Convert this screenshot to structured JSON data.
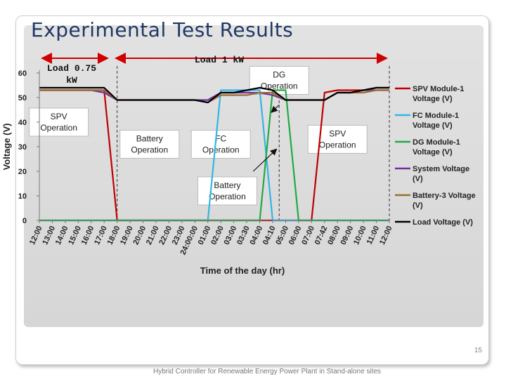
{
  "slide": {
    "title": "Experimental Test Results",
    "page_number": "15",
    "footer": "Hybrid Controller for Renewable Energy Power Plant in Stand-alone sites"
  },
  "chart_data": {
    "type": "line",
    "ylabel": "Voltage (V)",
    "xlabel": "Time of the day (hr)",
    "ylim": [
      0,
      60
    ],
    "yticks": [
      0,
      10,
      20,
      30,
      40,
      50,
      60
    ],
    "grid": false,
    "legend_position": "right",
    "categories": [
      "12:00",
      "13:00",
      "14:00",
      "15:00",
      "16:00",
      "17:00",
      "18:00",
      "19:00",
      "20:00",
      "21:00",
      "22:00",
      "23:00",
      "24:00:00",
      "01:00",
      "02:00",
      "03:00",
      "03:30",
      "04:00",
      "04:10",
      "05:00",
      "06:00",
      "07:00",
      "07:42",
      "08:00",
      "09:00",
      "10:00",
      "11:00",
      "12:00"
    ],
    "series": [
      {
        "name": "SPV Module-1 Voltage (V)",
        "color": "#c00000",
        "values": [
          53,
          53,
          53,
          53,
          53,
          53,
          0,
          0,
          0,
          0,
          0,
          0,
          0,
          0,
          0,
          0,
          0,
          0,
          0,
          0,
          0,
          0,
          52,
          53,
          53,
          53,
          54,
          54
        ]
      },
      {
        "name": "FC Module-1 Voltage (V)",
        "color": "#33b5e5",
        "values": [
          0,
          0,
          0,
          0,
          0,
          0,
          0,
          0,
          0,
          0,
          0,
          0,
          0,
          0,
          53,
          53,
          53,
          53,
          0,
          0,
          0,
          0,
          0,
          0,
          0,
          0,
          0,
          0
        ]
      },
      {
        "name": "DG Module-1 Voltage (V)",
        "color": "#22aa44",
        "values": [
          0,
          0,
          0,
          0,
          0,
          0,
          0,
          0,
          0,
          0,
          0,
          0,
          0,
          0,
          0,
          0,
          0,
          0,
          53,
          53,
          0,
          0,
          0,
          0,
          0,
          0,
          0,
          0
        ]
      },
      {
        "name": "System Voltage (V)",
        "color": "#7030a0",
        "values": [
          53,
          53,
          53,
          53,
          53,
          52,
          49,
          49,
          49,
          49,
          49,
          49,
          49,
          49,
          52,
          52,
          52,
          52,
          51,
          49,
          49,
          49,
          49,
          52,
          52,
          53,
          53,
          53
        ]
      },
      {
        "name": "Battery-3 Voltage (V)",
        "color": "#9c6b30",
        "values": [
          53,
          53,
          53,
          53,
          53,
          53,
          49,
          49,
          49,
          49,
          49,
          49,
          49,
          48,
          51,
          51,
          51,
          52,
          52,
          49,
          49,
          49,
          49,
          52,
          52,
          52,
          53,
          53
        ]
      },
      {
        "name": "Load Voltage (V)",
        "color": "#000000",
        "values": [
          54,
          54,
          54,
          54,
          54,
          54,
          49,
          49,
          49,
          49,
          49,
          49,
          49,
          48,
          52,
          52,
          53,
          54,
          53,
          49,
          49,
          49,
          49,
          52,
          52,
          53,
          54,
          54
        ]
      }
    ],
    "load_labels": [
      "Load 0.75 kW",
      "Load 1 kW"
    ],
    "annotations": [
      {
        "text": "SPV Operation",
        "x_index": 1.5,
        "y": 40
      },
      {
        "text": "Battery Operation",
        "x_index": 8.5,
        "y": 31
      },
      {
        "text": "FC Operation",
        "x_index": 14,
        "y": 31
      },
      {
        "text": "Battery Operation",
        "x_index": 14.5,
        "y": 12
      },
      {
        "text": "DG Operation",
        "x_index": 18.5,
        "y": 57
      },
      {
        "text": "SPV Operation",
        "x_index": 23,
        "y": 33
      }
    ]
  }
}
